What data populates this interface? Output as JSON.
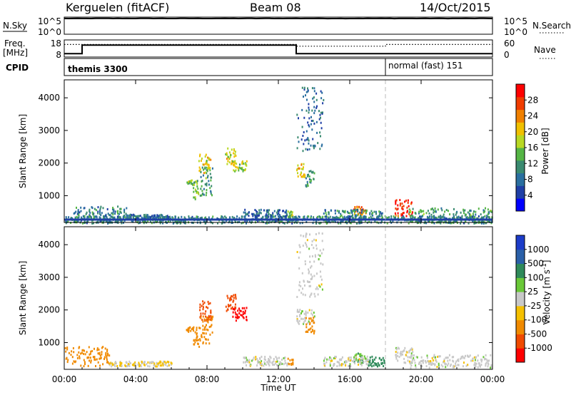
{
  "header": {
    "station": "Kerguelen (fitACF)",
    "beam": "Beam 08",
    "date": "14/Oct/2015"
  },
  "nsky_panel": {
    "left_label": "N.Sky",
    "left_ticks": [
      "10^5",
      "10^0"
    ],
    "right_label": "N.Search",
    "right_ticks": [
      "10^5",
      "10^0"
    ]
  },
  "freq_panel": {
    "left_label_1": "Freq.",
    "left_label_2": "[MHz]",
    "left_ticks": [
      "18",
      "8"
    ],
    "right_label": "Nave",
    "right_ticks": [
      "60",
      "0"
    ]
  },
  "cpid_panel": {
    "label": "CPID",
    "mode_1": "themis 3300",
    "mode_2": "normal (fast) 151",
    "mode_change_time_h": 18.0
  },
  "time_axis": {
    "label": "Time UT",
    "ticks": [
      "00:00",
      "04:00",
      "08:00",
      "12:00",
      "16:00",
      "20:00",
      "00:00"
    ],
    "range_h": [
      0,
      24
    ]
  },
  "power_colorbar": {
    "label": "Power [dB]",
    "ticks": [
      "4",
      "8",
      "12",
      "16",
      "20",
      "24",
      "28"
    ],
    "colors": [
      "#0000ff",
      "#1f3fa6",
      "#2a6fa0",
      "#3a8a70",
      "#55b545",
      "#b8d823",
      "#f0c000",
      "#f08000",
      "#f03c00",
      "#ff0000"
    ]
  },
  "velocity_colorbar": {
    "label_1": "Velocity",
    "label_2": "[m s",
    "label_sup": "-1",
    "label_3": "]",
    "ticks": [
      "1000",
      "500",
      "100",
      "25",
      "-25",
      "-100",
      "-500",
      "-1000"
    ],
    "colors": [
      "#1c3cc8",
      "#2a60a8",
      "#2f8a5a",
      "#6ac838",
      "#c8c8c8",
      "#f5c000",
      "#f08a00",
      "#f04a00",
      "#ff0000"
    ]
  },
  "chart_data": [
    {
      "type": "line",
      "title": "",
      "ylabel": "N.Sky",
      "y2label": "N.Search",
      "yscale": "log",
      "ylim": [
        1,
        100000
      ],
      "x_units": "hours UT",
      "series": [
        {
          "x": [
            0,
            24
          ],
          "y": [
            40000,
            40000
          ]
        }
      ]
    },
    {
      "type": "line",
      "ylabel": "Freq. [MHz]",
      "y2label": "Nave",
      "ylim": [
        8,
        18
      ],
      "y2lim": [
        0,
        60
      ],
      "series": [
        {
          "name": "Freq.",
          "x": [
            0,
            1,
            1,
            13,
            13,
            24
          ],
          "y": [
            10,
            10,
            15,
            15,
            10,
            10
          ]
        },
        {
          "name": "Nave",
          "x": [
            0,
            13,
            13,
            18,
            18,
            24
          ],
          "y": [
            44,
            44,
            38,
            38,
            44,
            44
          ]
        }
      ]
    },
    {
      "type": "scatter",
      "ylabel": "Slant Range [km]",
      "xlabel": "",
      "ylim": [
        180,
        4550
      ],
      "yticks": [
        1000,
        2000,
        3000,
        4000
      ],
      "clusters": [
        {
          "t": [
            6.8,
            7.2
          ],
          "r": [
            1350,
            1500
          ],
          "v": 14
        },
        {
          "t": [
            7.2,
            7.6
          ],
          "r": [
            900,
            1500
          ],
          "v": 12
        },
        {
          "t": [
            7.5,
            8.2
          ],
          "r": [
            1700,
            2300
          ],
          "v": 16
        },
        {
          "t": [
            7.6,
            8.3
          ],
          "r": [
            1000,
            1900
          ],
          "v": 10
        },
        {
          "t": [
            9.0,
            9.6
          ],
          "r": [
            2000,
            2500
          ],
          "v": 16
        },
        {
          "t": [
            9.4,
            10.2
          ],
          "r": [
            1700,
            2100
          ],
          "v": 14
        },
        {
          "t": [
            12.5,
            12.8
          ],
          "r": [
            350,
            550
          ],
          "v": 14
        },
        {
          "t": [
            13.0,
            13.5
          ],
          "r": [
            1600,
            2050
          ],
          "v": 18
        },
        {
          "t": [
            13.5,
            14.0
          ],
          "r": [
            1300,
            1800
          ],
          "v": 10
        },
        {
          "t": [
            13.0,
            14.5
          ],
          "r": [
            2400,
            4400
          ],
          "v": 6
        },
        {
          "t": [
            16.2,
            16.9
          ],
          "r": [
            450,
            700
          ],
          "v": 22
        },
        {
          "t": [
            18.5,
            19.5
          ],
          "r": [
            400,
            900
          ],
          "v": 26
        },
        {
          "t": [
            19.3,
            24.0
          ],
          "r": [
            200,
            650
          ],
          "v": 10
        },
        {
          "t": [
            0.0,
            24.0
          ],
          "r": [
            180,
            400
          ],
          "v": 8
        },
        {
          "t": [
            0.5,
            3.5
          ],
          "r": [
            300,
            700
          ],
          "v": 8
        },
        {
          "t": [
            3.5,
            6.0
          ],
          "r": [
            300,
            450
          ],
          "v": 6
        },
        {
          "t": [
            10.0,
            12.5
          ],
          "r": [
            300,
            600
          ],
          "v": 6
        },
        {
          "t": [
            14.5,
            18.0
          ],
          "r": [
            300,
            600
          ],
          "v": 8
        }
      ]
    },
    {
      "type": "scatter",
      "ylabel": "Slant Range [km]",
      "xlabel": "Time UT",
      "ylim": [
        180,
        4550
      ],
      "yticks": [
        1000,
        2000,
        3000,
        4000
      ],
      "clusters": [
        {
          "t": [
            6.8,
            7.2
          ],
          "r": [
            1350,
            1500
          ],
          "v": -100
        },
        {
          "t": [
            7.2,
            7.6
          ],
          "r": [
            900,
            1500
          ],
          "v": -100
        },
        {
          "t": [
            7.5,
            8.2
          ],
          "r": [
            1700,
            2300
          ],
          "v": -500
        },
        {
          "t": [
            7.6,
            8.3
          ],
          "r": [
            1000,
            1900
          ],
          "v": -100
        },
        {
          "t": [
            9.0,
            9.6
          ],
          "r": [
            2000,
            2500
          ],
          "v": -500
        },
        {
          "t": [
            9.4,
            10.2
          ],
          "r": [
            1700,
            2100
          ],
          "v": -1000
        },
        {
          "t": [
            12.5,
            12.8
          ],
          "r": [
            350,
            550
          ],
          "v": -100
        },
        {
          "t": [
            13.0,
            14.0
          ],
          "r": [
            1600,
            2050
          ],
          "v": 0
        },
        {
          "t": [
            13.5,
            14.0
          ],
          "r": [
            1300,
            1800
          ],
          "v": -100
        },
        {
          "t": [
            13.0,
            14.5
          ],
          "r": [
            2400,
            4400
          ],
          "v": 0
        },
        {
          "t": [
            16.2,
            16.9
          ],
          "r": [
            400,
            700
          ],
          "v": 50
        },
        {
          "t": [
            17.0,
            18.0
          ],
          "r": [
            300,
            600
          ],
          "v": 150
        },
        {
          "t": [
            18.5,
            19.5
          ],
          "r": [
            400,
            900
          ],
          "v": 0
        },
        {
          "t": [
            19.3,
            24.0
          ],
          "r": [
            250,
            650
          ],
          "v": 0
        },
        {
          "t": [
            0.0,
            2.5
          ],
          "r": [
            300,
            900
          ],
          "v": -100
        },
        {
          "t": [
            2.5,
            6.0
          ],
          "r": [
            300,
            450
          ],
          "v": -25
        },
        {
          "t": [
            10.0,
            12.5
          ],
          "r": [
            300,
            600
          ],
          "v": 0
        },
        {
          "t": [
            14.5,
            17.0
          ],
          "r": [
            300,
            600
          ],
          "v": 0
        }
      ]
    }
  ]
}
